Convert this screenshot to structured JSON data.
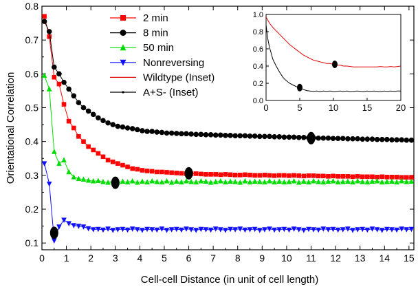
{
  "chart_data": {
    "type": "scatter",
    "xlabel": "Cell-cell Distance (in unit of cell length)",
    "ylabel": "Orientational Correlation",
    "xlim": [
      0,
      15.2
    ],
    "ylim": [
      0.08,
      0.8
    ],
    "xticks": [
      "0",
      "1",
      "2",
      "3",
      "4",
      "5",
      "6",
      "7",
      "8",
      "9",
      "10",
      "11",
      "12",
      "13",
      "14",
      "15"
    ],
    "yticks": [
      "0.1",
      "0.2",
      "0.3",
      "0.4",
      "0.5",
      "0.6",
      "0.7",
      "0.8"
    ],
    "legend_position": "top-left inside",
    "series": [
      {
        "name": "2 min",
        "color": "#ff0000",
        "marker": "square",
        "x": [
          0.1,
          0.3,
          0.5,
          0.7,
          0.9,
          1.1,
          1.3,
          1.5,
          1.7,
          1.9,
          2.1,
          2.3,
          2.5,
          2.7,
          2.9,
          3.1,
          3.3,
          3.5,
          3.7,
          3.9,
          4.1,
          4.3,
          4.5,
          4.7,
          4.9,
          5.1,
          5.3,
          5.5,
          5.7,
          5.9,
          6.1,
          6.3,
          6.5,
          6.7,
          6.9,
          7.1,
          7.3,
          7.5,
          7.7,
          7.9,
          8.1,
          8.3,
          8.5,
          8.7,
          8.9,
          9.1,
          9.3,
          9.5,
          9.7,
          9.9,
          10.1,
          10.3,
          10.5,
          10.7,
          10.9,
          11.1,
          11.3,
          11.5,
          11.7,
          11.9,
          12.1,
          12.3,
          12.5,
          12.7,
          12.9,
          13.1,
          13.3,
          13.5,
          13.7,
          13.9,
          14.1,
          14.3,
          14.5,
          14.7,
          14.9,
          15.1
        ],
        "y": [
          0.77,
          0.71,
          0.59,
          0.57,
          0.51,
          0.46,
          0.44,
          0.415,
          0.4,
          0.385,
          0.375,
          0.365,
          0.355,
          0.345,
          0.34,
          0.335,
          0.33,
          0.325,
          0.32,
          0.318,
          0.315,
          0.313,
          0.312,
          0.31,
          0.31,
          0.309,
          0.308,
          0.307,
          0.306,
          0.305,
          0.305,
          0.305,
          0.304,
          0.303,
          0.303,
          0.303,
          0.302,
          0.303,
          0.302,
          0.301,
          0.301,
          0.302,
          0.301,
          0.3,
          0.3,
          0.301,
          0.3,
          0.299,
          0.3,
          0.3,
          0.299,
          0.3,
          0.299,
          0.298,
          0.299,
          0.299,
          0.298,
          0.298,
          0.297,
          0.298,
          0.297,
          0.297,
          0.297,
          0.296,
          0.297,
          0.296,
          0.296,
          0.296,
          0.295,
          0.296,
          0.295,
          0.295,
          0.295,
          0.294,
          0.294,
          0.294
        ]
      },
      {
        "name": "8 min",
        "color": "#000000",
        "marker": "circle",
        "x": [
          0.1,
          0.3,
          0.5,
          0.7,
          0.9,
          1.1,
          1.3,
          1.5,
          1.7,
          1.9,
          2.1,
          2.3,
          2.5,
          2.7,
          2.9,
          3.1,
          3.3,
          3.5,
          3.7,
          3.9,
          4.1,
          4.3,
          4.5,
          4.7,
          4.9,
          5.1,
          5.3,
          5.5,
          5.7,
          5.9,
          6.1,
          6.3,
          6.5,
          6.7,
          6.9,
          7.1,
          7.3,
          7.5,
          7.7,
          7.9,
          8.1,
          8.3,
          8.5,
          8.7,
          8.9,
          9.1,
          9.3,
          9.5,
          9.7,
          9.9,
          10.1,
          10.3,
          10.5,
          10.7,
          10.9,
          11.1,
          11.3,
          11.5,
          11.7,
          11.9,
          12.1,
          12.3,
          12.5,
          12.7,
          12.9,
          13.1,
          13.3,
          13.5,
          13.7,
          13.9,
          14.1,
          14.3,
          14.5,
          14.7,
          14.9,
          15.1
        ],
        "y": [
          0.755,
          0.725,
          0.62,
          0.6,
          0.575,
          0.555,
          0.535,
          0.515,
          0.5,
          0.49,
          0.48,
          0.47,
          0.462,
          0.455,
          0.45,
          0.445,
          0.443,
          0.44,
          0.438,
          0.435,
          0.432,
          0.43,
          0.43,
          0.428,
          0.427,
          0.425,
          0.425,
          0.424,
          0.423,
          0.423,
          0.422,
          0.421,
          0.421,
          0.42,
          0.42,
          0.419,
          0.419,
          0.418,
          0.418,
          0.417,
          0.417,
          0.417,
          0.416,
          0.416,
          0.415,
          0.415,
          0.415,
          0.414,
          0.414,
          0.413,
          0.413,
          0.413,
          0.412,
          0.412,
          0.411,
          0.411,
          0.41,
          0.41,
          0.41,
          0.409,
          0.409,
          0.409,
          0.408,
          0.408,
          0.408,
          0.407,
          0.407,
          0.407,
          0.406,
          0.406,
          0.406,
          0.405,
          0.405,
          0.405,
          0.404,
          0.404
        ]
      },
      {
        "name": "50 min",
        "color": "#00dd00",
        "marker": "triangle-up",
        "x": [
          0.1,
          0.3,
          0.5,
          0.7,
          0.9,
          1.1,
          1.3,
          1.5,
          1.7,
          1.9,
          2.1,
          2.3,
          2.5,
          2.7,
          2.9,
          3.1,
          3.3,
          3.5,
          3.7,
          3.9,
          4.1,
          4.3,
          4.5,
          4.7,
          4.9,
          5.1,
          5.3,
          5.5,
          5.7,
          5.9,
          6.1,
          6.3,
          6.5,
          6.7,
          6.9,
          7.1,
          7.3,
          7.5,
          7.7,
          7.9,
          8.1,
          8.3,
          8.5,
          8.7,
          8.9,
          9.1,
          9.3,
          9.5,
          9.7,
          9.9,
          10.1,
          10.3,
          10.5,
          10.7,
          10.9,
          11.1,
          11.3,
          11.5,
          11.7,
          11.9,
          12.1,
          12.3,
          12.5,
          12.7,
          12.9,
          13.1,
          13.3,
          13.5,
          13.7,
          13.9,
          14.1,
          14.3,
          14.5,
          14.7,
          14.9,
          15.1
        ],
        "y": [
          0.595,
          0.555,
          0.37,
          0.335,
          0.345,
          0.31,
          0.295,
          0.29,
          0.288,
          0.285,
          0.283,
          0.284,
          0.281,
          0.279,
          0.283,
          0.28,
          0.282,
          0.28,
          0.283,
          0.279,
          0.282,
          0.28,
          0.283,
          0.281,
          0.28,
          0.283,
          0.279,
          0.282,
          0.28,
          0.283,
          0.281,
          0.28,
          0.283,
          0.282,
          0.279,
          0.281,
          0.283,
          0.28,
          0.282,
          0.281,
          0.279,
          0.283,
          0.28,
          0.282,
          0.281,
          0.28,
          0.283,
          0.28,
          0.282,
          0.28,
          0.281,
          0.283,
          0.279,
          0.282,
          0.28,
          0.283,
          0.281,
          0.28,
          0.282,
          0.283,
          0.28,
          0.281,
          0.282,
          0.28,
          0.283,
          0.281,
          0.28,
          0.282,
          0.283,
          0.28,
          0.281,
          0.282,
          0.28,
          0.283,
          0.281,
          0.282
        ]
      },
      {
        "name": "Nonreversing",
        "color": "#1010ff",
        "marker": "triangle-down",
        "x": [
          0.1,
          0.3,
          0.5,
          0.7,
          0.9,
          1.1,
          1.3,
          1.5,
          1.7,
          1.9,
          2.1,
          2.3,
          2.5,
          2.7,
          2.9,
          3.1,
          3.3,
          3.5,
          3.7,
          3.9,
          4.1,
          4.3,
          4.5,
          4.7,
          4.9,
          5.1,
          5.3,
          5.5,
          5.7,
          5.9,
          6.1,
          6.3,
          6.5,
          6.7,
          6.9,
          7.1,
          7.3,
          7.5,
          7.7,
          7.9,
          8.1,
          8.3,
          8.5,
          8.7,
          8.9,
          9.1,
          9.3,
          9.5,
          9.7,
          9.9,
          10.1,
          10.3,
          10.5,
          10.7,
          10.9,
          11.1,
          11.3,
          11.5,
          11.7,
          11.9,
          12.1,
          12.3,
          12.5,
          12.7,
          12.9,
          13.1,
          13.3,
          13.5,
          13.7,
          13.9,
          14.1,
          14.3,
          14.5,
          14.7,
          14.9,
          15.1
        ],
        "y": [
          0.335,
          0.275,
          0.107,
          0.148,
          0.168,
          0.158,
          0.152,
          0.15,
          0.148,
          0.143,
          0.14,
          0.141,
          0.139,
          0.142,
          0.138,
          0.14,
          0.141,
          0.139,
          0.142,
          0.14,
          0.138,
          0.141,
          0.14,
          0.139,
          0.142,
          0.138,
          0.14,
          0.141,
          0.139,
          0.142,
          0.14,
          0.138,
          0.141,
          0.14,
          0.139,
          0.142,
          0.14,
          0.138,
          0.141,
          0.14,
          0.142,
          0.139,
          0.14,
          0.141,
          0.138,
          0.14,
          0.142,
          0.139,
          0.14,
          0.141,
          0.139,
          0.142,
          0.14,
          0.138,
          0.141,
          0.14,
          0.139,
          0.142,
          0.14,
          0.141,
          0.139,
          0.14,
          0.142,
          0.138,
          0.14,
          0.141,
          0.139,
          0.142,
          0.14,
          0.138,
          0.141,
          0.14,
          0.139,
          0.142,
          0.14,
          0.141
        ]
      }
    ],
    "markers_large": [
      {
        "x": 0.5,
        "y": 0.13
      },
      {
        "x": 3.0,
        "y": 0.278
      },
      {
        "x": 6.0,
        "y": 0.306
      },
      {
        "x": 11.0,
        "y": 0.41
      }
    ],
    "inset": {
      "xlim": [
        0,
        20
      ],
      "ylim": [
        0,
        1.0
      ],
      "xticks": [
        "0",
        "5",
        "10",
        "15",
        "20"
      ],
      "yticks": [
        "0.0",
        "0.2",
        "0.4",
        "0.6",
        "0.8",
        "1.0"
      ],
      "series": [
        {
          "name": "Wildtype (Inset)",
          "color": "#e00000",
          "x": [
            0,
            0.5,
            1,
            1.5,
            2,
            2.5,
            3,
            3.5,
            4,
            4.5,
            5,
            5.5,
            6,
            6.5,
            7,
            7.5,
            8,
            8.5,
            9,
            9.5,
            10,
            10.5,
            11,
            11.5,
            12,
            12.5,
            13,
            13.5,
            14,
            14.5,
            15,
            15.5,
            16,
            16.5,
            17,
            17.5,
            18,
            18.5,
            19,
            19.5,
            20
          ],
          "y": [
            0.97,
            0.9,
            0.85,
            0.81,
            0.77,
            0.73,
            0.69,
            0.65,
            0.62,
            0.59,
            0.56,
            0.53,
            0.51,
            0.49,
            0.47,
            0.46,
            0.45,
            0.44,
            0.43,
            0.43,
            0.42,
            0.41,
            0.41,
            0.4,
            0.4,
            0.395,
            0.39,
            0.39,
            0.39,
            0.39,
            0.39,
            0.39,
            0.39,
            0.39,
            0.395,
            0.39,
            0.39,
            0.395,
            0.39,
            0.395,
            0.4
          ]
        },
        {
          "name": "A+S- (Inset)",
          "color": "#000000",
          "x": [
            0,
            0.25,
            0.5,
            0.75,
            1,
            1.5,
            2,
            2.5,
            3,
            3.5,
            4,
            4.5,
            5,
            5.5,
            6,
            6.5,
            7,
            7.5,
            8,
            8.5,
            9,
            9.5,
            10,
            10.5,
            11,
            11.5,
            12,
            12.5,
            13,
            13.5,
            14,
            14.5,
            15,
            15.5,
            16,
            16.5,
            17,
            17.5,
            18,
            18.5,
            19,
            19.5,
            20
          ],
          "y": [
            0.88,
            0.72,
            0.62,
            0.55,
            0.48,
            0.4,
            0.33,
            0.27,
            0.23,
            0.2,
            0.18,
            0.16,
            0.15,
            0.13,
            0.115,
            0.11,
            0.105,
            0.11,
            0.1,
            0.11,
            0.105,
            0.11,
            0.1,
            0.105,
            0.11,
            0.105,
            0.11,
            0.1,
            0.105,
            0.11,
            0.105,
            0.1,
            0.11,
            0.105,
            0.11,
            0.105,
            0.1,
            0.11,
            0.105,
            0.11,
            0.105,
            0.11,
            0.11
          ]
        }
      ],
      "markers_large": [
        {
          "x": 5.0,
          "y": 0.15
        },
        {
          "x": 10.2,
          "y": 0.42
        }
      ]
    }
  }
}
